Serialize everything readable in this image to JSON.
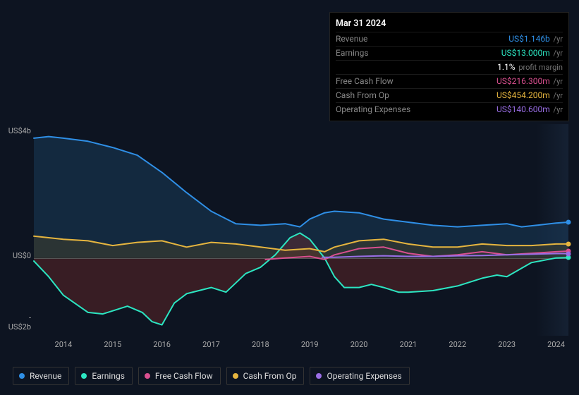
{
  "tooltip": {
    "date": "Mar 31 2024",
    "rows": [
      {
        "label": "Revenue",
        "value": "US$1.146b",
        "color": "#2f8fe6",
        "unit": "/yr"
      },
      {
        "label": "Earnings",
        "value": "US$13.000m",
        "color": "#2ce6c2",
        "unit": "/yr"
      },
      {
        "label": "",
        "value": "1.1%",
        "color": "#ffffff",
        "unit": "profit margin"
      },
      {
        "label": "Free Cash Flow",
        "value": "US$216.300m",
        "color": "#d94f8f",
        "unit": "/yr"
      },
      {
        "label": "Cash From Op",
        "value": "US$454.200m",
        "color": "#e6b53f",
        "unit": "/yr"
      },
      {
        "label": "Operating Expenses",
        "value": "US$140.600m",
        "color": "#9a6ee6",
        "unit": "/yr"
      }
    ]
  },
  "chart": {
    "type": "area-line",
    "background_color": "#0d1421",
    "grid_zero_color": "#555555",
    "y_min": -2.5,
    "y_max": 4.3,
    "y_ticks": [
      {
        "v": 4,
        "label": "US$4b"
      },
      {
        "v": 0,
        "label": "US$0"
      },
      {
        "v": -2,
        "label": "-US$2b"
      }
    ],
    "x_min": 2013.4,
    "x_max": 2024.25,
    "x_ticks": [
      2014,
      2015,
      2016,
      2017,
      2018,
      2019,
      2020,
      2021,
      2022,
      2023,
      2024
    ],
    "series": [
      {
        "name": "Revenue",
        "color": "#2f8fe6",
        "fill": "#1a3a5a",
        "fill_opacity": 0.55,
        "stroke_width": 2,
        "points": [
          [
            2013.4,
            3.85
          ],
          [
            2013.7,
            3.9
          ],
          [
            2014.0,
            3.85
          ],
          [
            2014.5,
            3.75
          ],
          [
            2015.0,
            3.55
          ],
          [
            2015.5,
            3.3
          ],
          [
            2016.0,
            2.75
          ],
          [
            2016.5,
            2.1
          ],
          [
            2017.0,
            1.5
          ],
          [
            2017.25,
            1.3
          ],
          [
            2017.5,
            1.1
          ],
          [
            2018.0,
            1.05
          ],
          [
            2018.5,
            1.1
          ],
          [
            2018.8,
            1.0
          ],
          [
            2019.0,
            1.25
          ],
          [
            2019.3,
            1.45
          ],
          [
            2019.5,
            1.5
          ],
          [
            2020.0,
            1.45
          ],
          [
            2020.5,
            1.25
          ],
          [
            2021.0,
            1.15
          ],
          [
            2021.5,
            1.05
          ],
          [
            2022.0,
            1.0
          ],
          [
            2022.5,
            1.05
          ],
          [
            2023.0,
            1.1
          ],
          [
            2023.3,
            1.0
          ],
          [
            2023.6,
            1.05
          ],
          [
            2024.0,
            1.12
          ],
          [
            2024.25,
            1.15
          ]
        ]
      },
      {
        "name": "Earnings",
        "color": "#2ce6c2",
        "fill": "#7a2a2a",
        "fill_opacity": 0.4,
        "stroke_width": 2,
        "points": [
          [
            2013.4,
            -0.1
          ],
          [
            2013.7,
            -0.6
          ],
          [
            2014.0,
            -1.2
          ],
          [
            2014.5,
            -1.75
          ],
          [
            2014.8,
            -1.8
          ],
          [
            2015.0,
            -1.7
          ],
          [
            2015.3,
            -1.55
          ],
          [
            2015.6,
            -1.75
          ],
          [
            2015.8,
            -2.05
          ],
          [
            2016.0,
            -2.15
          ],
          [
            2016.25,
            -1.45
          ],
          [
            2016.5,
            -1.15
          ],
          [
            2017.0,
            -0.95
          ],
          [
            2017.3,
            -1.1
          ],
          [
            2017.7,
            -0.5
          ],
          [
            2018.0,
            -0.3
          ],
          [
            2018.3,
            0.1
          ],
          [
            2018.6,
            0.65
          ],
          [
            2018.8,
            0.8
          ],
          [
            2019.0,
            0.6
          ],
          [
            2019.3,
            0.0
          ],
          [
            2019.5,
            -0.6
          ],
          [
            2019.7,
            -0.95
          ],
          [
            2020.0,
            -0.95
          ],
          [
            2020.25,
            -0.85
          ],
          [
            2020.5,
            -0.95
          ],
          [
            2020.8,
            -1.1
          ],
          [
            2021.0,
            -1.1
          ],
          [
            2021.5,
            -1.05
          ],
          [
            2022.0,
            -0.9
          ],
          [
            2022.5,
            -0.65
          ],
          [
            2022.8,
            -0.55
          ],
          [
            2023.0,
            -0.6
          ],
          [
            2023.5,
            -0.15
          ],
          [
            2024.0,
            0.0
          ],
          [
            2024.25,
            0.01
          ]
        ]
      },
      {
        "name": "Cash From Op",
        "color": "#e6b53f",
        "fill": "#5a4a20",
        "fill_opacity": 0.35,
        "stroke_width": 2,
        "points": [
          [
            2013.4,
            0.7
          ],
          [
            2014.0,
            0.6
          ],
          [
            2014.5,
            0.55
          ],
          [
            2015.0,
            0.4
          ],
          [
            2015.5,
            0.5
          ],
          [
            2016.0,
            0.55
          ],
          [
            2016.5,
            0.35
          ],
          [
            2017.0,
            0.5
          ],
          [
            2017.5,
            0.45
          ],
          [
            2018.0,
            0.35
          ],
          [
            2018.5,
            0.25
          ],
          [
            2019.0,
            0.3
          ],
          [
            2019.3,
            0.2
          ],
          [
            2019.5,
            0.35
          ],
          [
            2020.0,
            0.55
          ],
          [
            2020.5,
            0.6
          ],
          [
            2021.0,
            0.45
          ],
          [
            2021.5,
            0.35
          ],
          [
            2022.0,
            0.35
          ],
          [
            2022.5,
            0.45
          ],
          [
            2023.0,
            0.4
          ],
          [
            2023.5,
            0.4
          ],
          [
            2024.0,
            0.45
          ],
          [
            2024.25,
            0.45
          ]
        ]
      },
      {
        "name": "Free Cash Flow",
        "color": "#d94f8f",
        "fill": null,
        "fill_opacity": 0,
        "stroke_width": 2,
        "points": [
          [
            2018.1,
            -0.05
          ],
          [
            2018.5,
            0.0
          ],
          [
            2019.0,
            0.05
          ],
          [
            2019.3,
            -0.05
          ],
          [
            2019.5,
            0.1
          ],
          [
            2020.0,
            0.3
          ],
          [
            2020.5,
            0.35
          ],
          [
            2021.0,
            0.15
          ],
          [
            2021.5,
            0.05
          ],
          [
            2022.0,
            0.1
          ],
          [
            2022.5,
            0.2
          ],
          [
            2023.0,
            0.1
          ],
          [
            2023.5,
            0.15
          ],
          [
            2024.0,
            0.2
          ],
          [
            2024.25,
            0.22
          ]
        ]
      },
      {
        "name": "Operating Expenses",
        "color": "#9a6ee6",
        "fill": null,
        "fill_opacity": 0,
        "stroke_width": 2,
        "points": [
          [
            2019.25,
            0.02
          ],
          [
            2019.5,
            0.02
          ],
          [
            2020.0,
            0.05
          ],
          [
            2020.5,
            0.07
          ],
          [
            2021.0,
            0.05
          ],
          [
            2021.5,
            0.05
          ],
          [
            2022.0,
            0.07
          ],
          [
            2022.5,
            0.08
          ],
          [
            2023.0,
            0.1
          ],
          [
            2023.5,
            0.12
          ],
          [
            2024.0,
            0.14
          ],
          [
            2024.25,
            0.14
          ]
        ]
      }
    ],
    "legend": [
      {
        "label": "Revenue",
        "color": "#2f8fe6"
      },
      {
        "label": "Earnings",
        "color": "#2ce6c2"
      },
      {
        "label": "Free Cash Flow",
        "color": "#d94f8f"
      },
      {
        "label": "Cash From Op",
        "color": "#e6b53f"
      },
      {
        "label": "Operating Expenses",
        "color": "#9a6ee6"
      }
    ]
  }
}
